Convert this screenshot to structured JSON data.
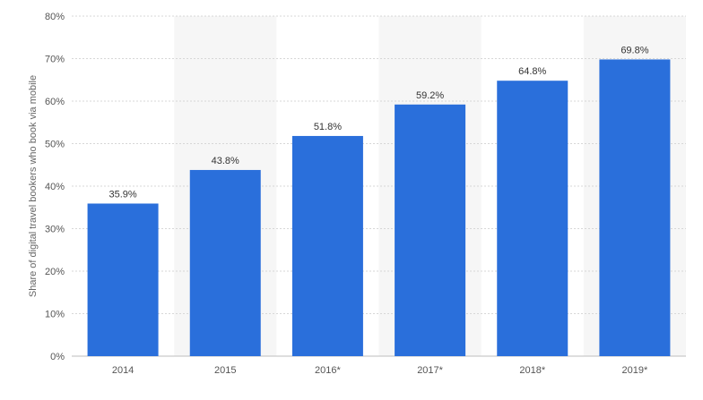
{
  "chart_data": {
    "type": "bar",
    "categories": [
      "2014",
      "2015",
      "2016*",
      "2017*",
      "2018*",
      "2019*"
    ],
    "values": [
      35.9,
      43.8,
      51.8,
      59.2,
      64.8,
      69.8
    ],
    "data_labels": [
      "35.9%",
      "43.8%",
      "51.8%",
      "59.2%",
      "64.8%",
      "69.8%"
    ],
    "title": "",
    "xlabel": "",
    "ylabel": "Share of digital travel bookers who book via mobile",
    "ylim": [
      0,
      80
    ],
    "yticks": [
      0,
      10,
      20,
      30,
      40,
      50,
      60,
      70,
      80
    ],
    "ytick_labels": [
      "0%",
      "10%",
      "20%",
      "30%",
      "40%",
      "50%",
      "60%",
      "70%",
      "80%"
    ],
    "grid": true,
    "legend": "none",
    "colors": {
      "bar": "#2a6fdb",
      "alternate_band": "#f6f6f6",
      "grid": "#d7d7d7"
    }
  }
}
